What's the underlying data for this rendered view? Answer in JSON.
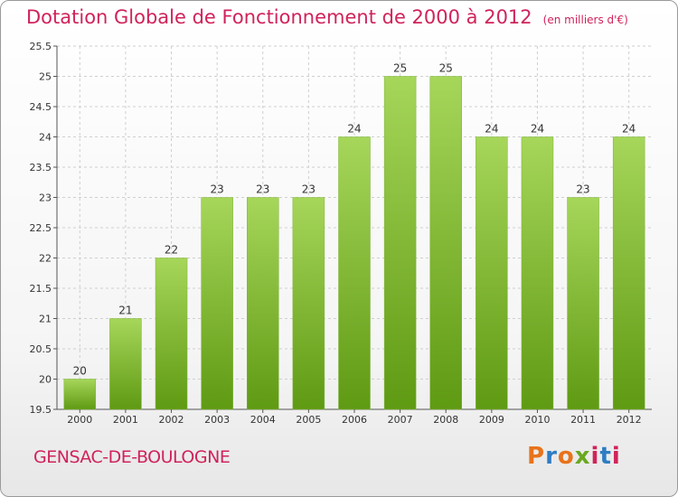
{
  "header": {
    "title": "Dotation Globale de Fonctionnement de 2000 à 2012",
    "unit": "(en milliers d'€)"
  },
  "footer": {
    "commune": "GENSAC-DE-BOULOGNE",
    "logo_text": "Proxiti",
    "logo_colors": [
      "#e8731b",
      "#2e7dc4",
      "#e8731b",
      "#6aa81f",
      "#d0235a",
      "#2e7dc4",
      "#d0235a"
    ]
  },
  "colors": {
    "title": "#d0235a",
    "bar_top": "#a6d65a",
    "bar_bottom": "#5f9a13"
  },
  "chart_data": {
    "type": "bar",
    "categories": [
      "2000",
      "2001",
      "2002",
      "2003",
      "2004",
      "2005",
      "2006",
      "2007",
      "2008",
      "2009",
      "2010",
      "2011",
      "2012"
    ],
    "values": [
      20,
      21,
      22,
      23,
      23,
      23,
      24,
      25,
      25,
      24,
      24,
      23,
      24
    ],
    "data_labels": [
      "20",
      "21",
      "22",
      "23",
      "23",
      "23",
      "24",
      "25",
      "25",
      "24",
      "24",
      "23",
      "24"
    ],
    "ylim": [
      19.5,
      25.5
    ],
    "yticks": [
      19.5,
      20,
      20.5,
      21,
      21.5,
      22,
      22.5,
      23,
      23.5,
      24,
      24.5,
      25,
      25.5
    ],
    "ytick_labels": [
      "19.5",
      "20",
      "20.5",
      "21",
      "21.5",
      "22",
      "22.5",
      "23",
      "23.5",
      "24",
      "24.5",
      "25",
      "25.5"
    ],
    "grid": true,
    "xlabel": "",
    "ylabel": ""
  }
}
